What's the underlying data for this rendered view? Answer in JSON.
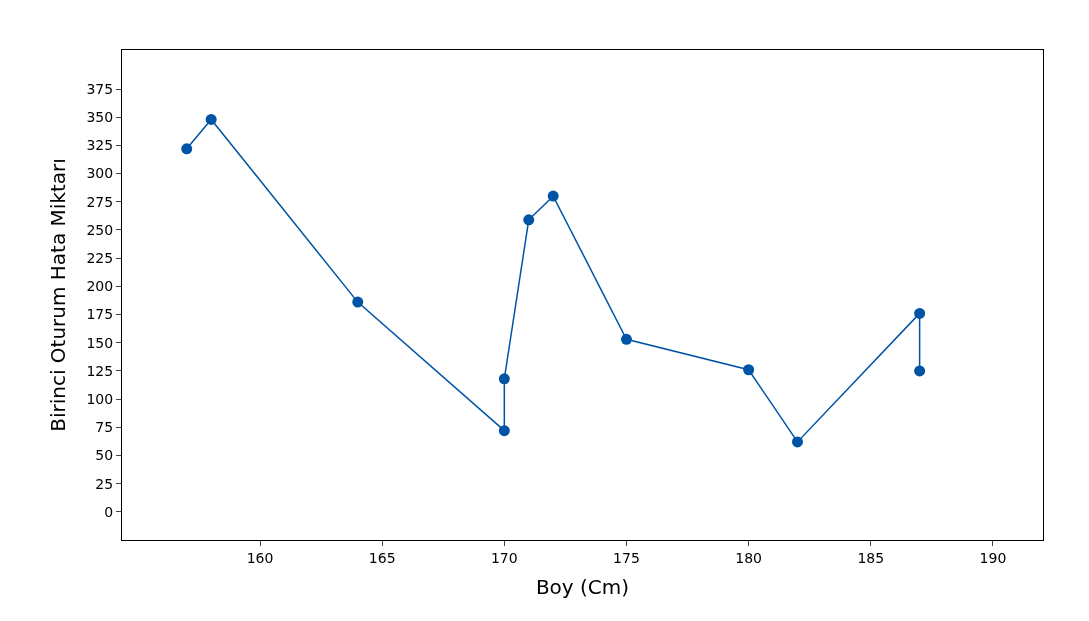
{
  "chart_data": {
    "type": "line",
    "xlabel": "Boy (Cm)",
    "ylabel": "Birinci Oturum Hata Miktarı",
    "x": [
      157,
      158,
      164,
      170,
      170,
      171,
      172,
      175,
      180,
      182,
      187,
      187
    ],
    "series": [
      {
        "color": "#0054a6",
        "values": [
          322,
          348,
          186,
          72,
          118,
          259,
          280,
          153,
          126,
          62,
          176,
          125
        ]
      }
    ],
    "xlim": [
      154.35,
      192.05
    ],
    "xticks": [
      160,
      165,
      170,
      175,
      180,
      185,
      190
    ],
    "ylim": [
      -25,
      409.6
    ],
    "yticks": [
      0,
      25,
      50,
      75,
      100,
      125,
      150,
      175,
      200,
      225,
      250,
      275,
      300,
      325,
      350,
      375
    ],
    "marker": "circle",
    "line_style": "solid"
  }
}
